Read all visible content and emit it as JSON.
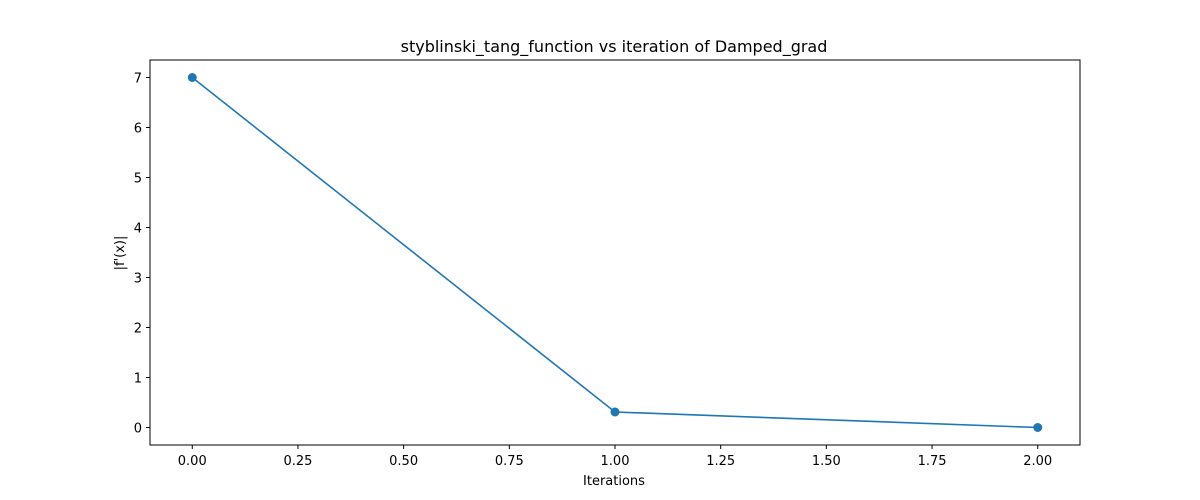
{
  "chart_data": {
    "type": "line",
    "title": "styblinski_tang_function vs iteration of Damped_grad",
    "xlabel": "Iterations",
    "ylabel": "|f'(x)|",
    "xlim": [
      -0.1,
      2.1
    ],
    "ylim": [
      -0.35,
      7.35
    ],
    "x_ticks": [
      0.0,
      0.25,
      0.5,
      0.75,
      1.0,
      1.25,
      1.5,
      1.75,
      2.0
    ],
    "x_tick_labels": [
      "0.00",
      "0.25",
      "0.50",
      "0.75",
      "1.00",
      "1.25",
      "1.50",
      "1.75",
      "2.00"
    ],
    "y_ticks": [
      0,
      1,
      2,
      3,
      4,
      5,
      6,
      7
    ],
    "y_tick_labels": [
      "0",
      "1",
      "2",
      "3",
      "4",
      "5",
      "6",
      "7"
    ],
    "grid": false,
    "series": [
      {
        "color": "#1f77b4",
        "marker": "circle",
        "x": [
          0,
          1,
          2
        ],
        "y": [
          7.0,
          0.31,
          0.0
        ]
      }
    ]
  }
}
